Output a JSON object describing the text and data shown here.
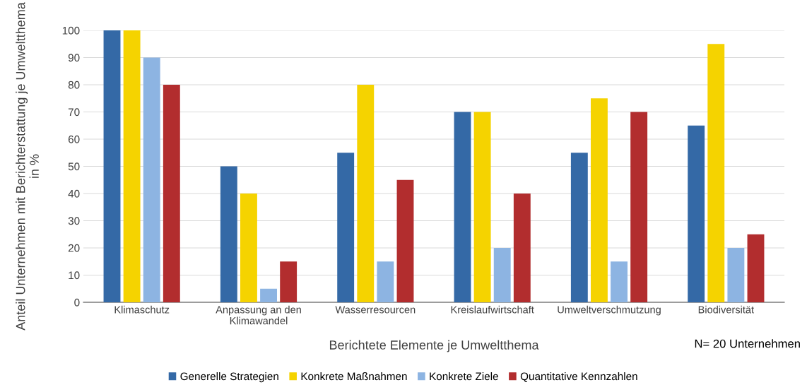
{
  "chart_data": {
    "type": "bar",
    "categories": [
      "Klimaschutz",
      "Anpassung an den\nKlimawandel",
      "Wasserresourcen",
      "Kreislaufwirtschaft",
      "Umweltverschmutzung",
      "Biodiversität"
    ],
    "series": [
      {
        "name": "Generelle Strategien",
        "color": "#3469a6",
        "values": [
          100,
          50,
          55,
          70,
          55,
          65
        ]
      },
      {
        "name": "Konkrete Maßnahmen",
        "color": "#f5d300",
        "values": [
          100,
          40,
          80,
          70,
          75,
          95
        ]
      },
      {
        "name": "Konkrete Ziele",
        "color": "#8db4e2",
        "values": [
          90,
          5,
          15,
          20,
          15,
          20
        ]
      },
      {
        "name": "Quantitative Kennzahlen",
        "color": "#b22d2e",
        "values": [
          80,
          15,
          45,
          40,
          70,
          25
        ]
      }
    ],
    "xlabel": "Berichtete Elemente je Umweltthema",
    "ylabel": "Anteil Unternehmen mit Berichterstattung je Umweltthema in %",
    "ylim": [
      0,
      100
    ],
    "yticks": [
      0,
      10,
      20,
      30,
      40,
      50,
      60,
      70,
      80,
      90,
      100
    ],
    "grid": "y",
    "legend": "bottom",
    "annotations": [
      "N= 20 Unternehmen"
    ]
  }
}
